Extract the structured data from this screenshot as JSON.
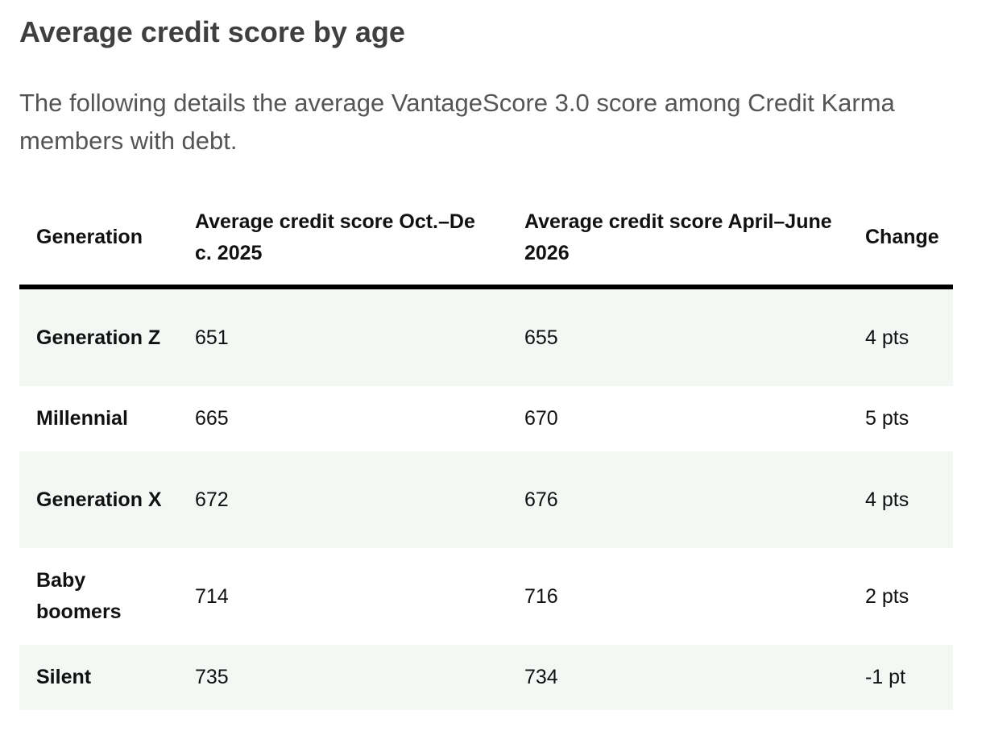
{
  "article": {
    "heading": "Average credit score by age",
    "intro": "The following details the average VantageScore 3.0 score among Credit Karma members with debt."
  },
  "table": {
    "columns": [
      "Generation",
      "Average credit score Oct.–Dec. 2025",
      "Average credit score April–June 2026",
      "Change"
    ],
    "rows": [
      {
        "generation": "Generation Z",
        "oct_dec_2025": "651",
        "apr_jun_2026": "655",
        "change": "4 pts"
      },
      {
        "generation": "Millennial",
        "oct_dec_2025": "665",
        "apr_jun_2026": "670",
        "change": "5 pts"
      },
      {
        "generation": "Generation X",
        "oct_dec_2025": "672",
        "apr_jun_2026": "676",
        "change": "4 pts"
      },
      {
        "generation": "Baby boomers",
        "oct_dec_2025": "714",
        "apr_jun_2026": "716",
        "change": "2 pts"
      },
      {
        "generation": "Silent",
        "oct_dec_2025": "735",
        "apr_jun_2026": "734",
        "change": "-1 pt"
      }
    ]
  },
  "colors": {
    "heading_text": "#3f3f3f",
    "intro_text": "#555555",
    "row_shade": "#f3f8f5",
    "header_rule": "#000000"
  }
}
